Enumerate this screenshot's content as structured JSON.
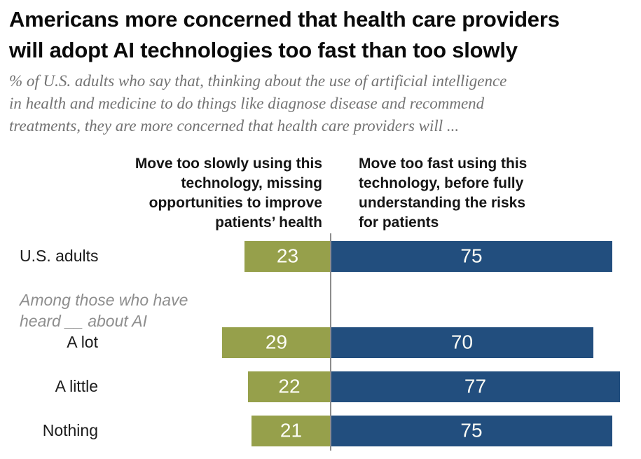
{
  "header": {
    "title": "Americans more concerned that health care providers\nwill adopt AI technologies too fast than too slowly",
    "subtitle": "% of U.S. adults who say that, thinking about the use of artificial intelligence\nin health and medicine to do things like diagnose disease and recommend\ntreatments, they are more concerned that health care providers will ..."
  },
  "column_headers": {
    "left": "Move too slowly using this\ntechnology, missing\nopportunities to improve\npatients’ health",
    "right": "Move too fast using this\ntechnology, before fully\nunderstanding the risks\nfor patients"
  },
  "group_note": "Among those who have\nheard __ about AI",
  "chart_data": {
    "type": "bar",
    "variant": "horizontal-diverging",
    "unit": "% of U.S. adults",
    "categories": [
      "U.S. adults",
      "A lot",
      "A little",
      "Nothing"
    ],
    "series": [
      {
        "name": "Move too slowly using this technology, missing opportunities to improve patients’ health",
        "side": "left",
        "color": "#96A04B",
        "values": [
          23,
          29,
          22,
          21
        ]
      },
      {
        "name": "Move too fast using this technology, before fully understanding the risks for patients",
        "side": "right",
        "color": "#224E7E",
        "values": [
          75,
          70,
          77,
          75
        ]
      }
    ],
    "group_note": "Among those who have heard __ about AI",
    "group_note_applies_to": [
      "A lot",
      "A little",
      "Nothing"
    ],
    "value_labels_shown": true,
    "value_label_color": "#FFFFFF",
    "axis_line_color": "#8C8C8C",
    "legend_position": "column-headers-top",
    "grid": false
  }
}
